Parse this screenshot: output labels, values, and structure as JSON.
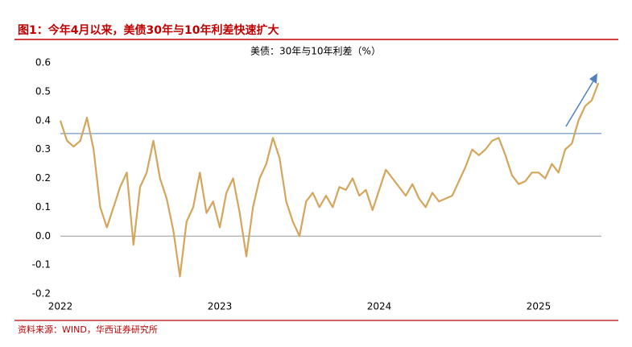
{
  "header": {
    "title": "图1：今年4月以来，美债30年与10年利差快速扩大"
  },
  "chart_data": {
    "type": "line",
    "title": "美债：30年与10年利差（%）",
    "categories": [
      "2022",
      null,
      null,
      null,
      null,
      null,
      null,
      null,
      null,
      null,
      null,
      null,
      null,
      null,
      null,
      null,
      null,
      null,
      null,
      null,
      null,
      null,
      null,
      null,
      "2023",
      null,
      null,
      null,
      null,
      null,
      null,
      null,
      null,
      null,
      null,
      null,
      null,
      null,
      null,
      null,
      null,
      null,
      null,
      null,
      null,
      null,
      null,
      null,
      "2024",
      null,
      null,
      null,
      null,
      null,
      null,
      null,
      null,
      null,
      null,
      null,
      null,
      null,
      null,
      null,
      null,
      null,
      null,
      null,
      null,
      null,
      null,
      null,
      "2025",
      null,
      null,
      null,
      null,
      null,
      null,
      null,
      null,
      null
    ],
    "series": [
      {
        "name": "美债：30年与10年利差",
        "color": "#d4a55a",
        "values": [
          0.4,
          0.33,
          0.31,
          0.33,
          0.41,
          0.3,
          0.1,
          0.03,
          0.1,
          0.17,
          0.22,
          -0.03,
          0.17,
          0.22,
          0.33,
          0.2,
          0.13,
          0.02,
          -0.14,
          0.05,
          0.1,
          0.22,
          0.08,
          0.12,
          0.03,
          0.15,
          0.2,
          0.08,
          -0.07,
          0.1,
          0.2,
          0.25,
          0.34,
          0.27,
          0.12,
          0.05,
          0.0,
          0.12,
          0.15,
          0.1,
          0.14,
          0.1,
          0.17,
          0.16,
          0.2,
          0.14,
          0.16,
          0.09,
          0.16,
          0.23,
          0.2,
          0.17,
          0.14,
          0.18,
          0.13,
          0.1,
          0.15,
          0.12,
          0.13,
          0.14,
          0.19,
          0.24,
          0.3,
          0.28,
          0.3,
          0.33,
          0.34,
          0.28,
          0.21,
          0.18,
          0.19,
          0.22,
          0.22,
          0.2,
          0.25,
          0.22,
          0.3,
          0.32,
          0.4,
          0.45,
          0.47,
          0.53
        ]
      }
    ],
    "ylim": [
      -0.2,
      0.6
    ],
    "yticks": [
      -0.2,
      -0.1,
      {
        "value": 0,
        "label": "0.0"
      },
      0.1,
      0.2,
      0.3,
      0.4,
      0.5,
      0.6
    ],
    "reference_line": {
      "value": 0.355,
      "color": "#4f81bd"
    },
    "grid": false
  },
  "footer": {
    "source": "资料来源：WIND，华西证券研究所"
  }
}
